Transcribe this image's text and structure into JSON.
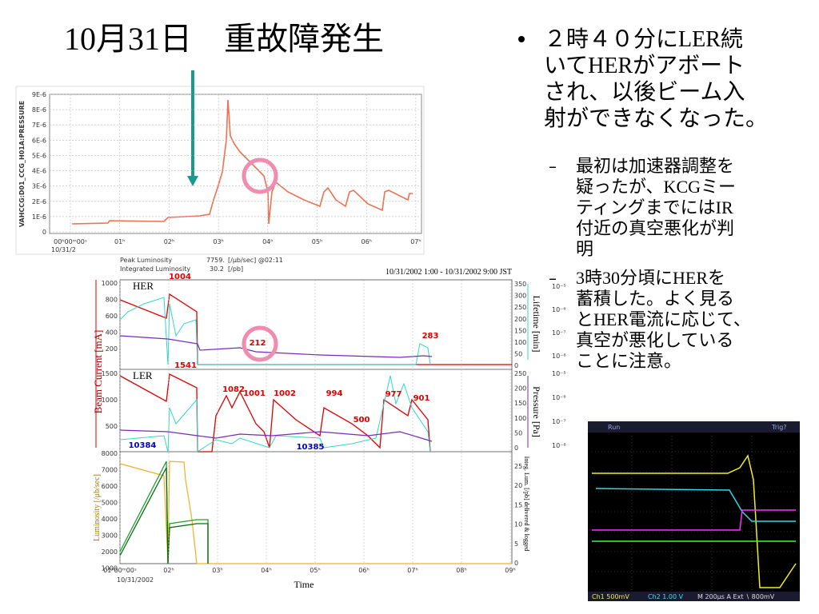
{
  "title": "10月31日　重故障発生",
  "bullet": {
    "lines": [
      "２時４０分にLER続",
      "いてHERがアボート",
      "され、以後ビーム入",
      "射ができなくなった。"
    ]
  },
  "sub_bullets": [
    {
      "lines": [
        "最初は加速器調整を",
        "疑ったが、KCGミー",
        "ティングまでにはIR",
        "付近の真空悪化が判",
        "明"
      ]
    },
    {
      "lines": [
        "3時30分頃にHERを",
        "蓄積した。よく見る",
        "とHER電流に応じて、",
        "真空が悪化している",
        "ことに注意。"
      ]
    }
  ],
  "top_chart": {
    "y_label": "VAHCCG:D01_CCG_H01A:PRESSURE",
    "yticks": [
      "9E-6",
      "8E-6",
      "7E-6",
      "6E-6",
      "5E-6",
      "4E-6",
      "3E-6",
      "2E-6",
      "1E-6",
      "0"
    ],
    "xticks": [
      "00ʰ00ᵐ00ˢ",
      "01ʰ",
      "02ʰ",
      "03ʰ",
      "04ʰ",
      "05ʰ",
      "06ʰ",
      "07ʰ"
    ],
    "date": "10/31/2"
  },
  "bottom_chart": {
    "header": [
      "Peak Luminosity",
      "7759.",
      "[/μb/sec] @02:11",
      "Integrated Luminosity",
      "30.2",
      "[/pb]"
    ],
    "range": "10/31/2002 1:00 - 10/31/2002 9:00 JST",
    "her_label": "HER",
    "ler_label": "LER",
    "current_label": "Beam Current [mA]",
    "lumi_label": "Luminosity [/μb/sec]",
    "lifetime_label": "Lifetime [min]",
    "pressure_label": "Pressure [Pa]",
    "integ_label": "Integ. Lum. [/pb] delivered & logged",
    "x_label": "Time",
    "xticks": [
      "01ʰ00ᵐ00ˢ",
      "02ʰ",
      "03ʰ",
      "04ʰ",
      "05ʰ",
      "06ʰ",
      "07ʰ",
      "08ʰ",
      "09ʰ"
    ],
    "x_date": "10/31/2002",
    "her_yticks": [
      "1000",
      "800",
      "600",
      "400",
      "200"
    ],
    "her_rticks": [
      "350",
      "300",
      "250",
      "200",
      "150",
      "100",
      "50",
      "0"
    ],
    "ler_yticks": [
      "1500",
      "1000",
      "500"
    ],
    "ler_rticks": [
      "250",
      "200",
      "150",
      "100",
      "50",
      "0"
    ],
    "log_ticks": [
      "10⁻⁵",
      "10⁻⁶",
      "10⁻⁷",
      "10⁻⁸"
    ],
    "lumi_yticks": [
      "8000",
      "7000",
      "6000",
      "5000",
      "4000",
      "3000",
      "2000",
      "1000"
    ],
    "lumi_rticks": [
      "25",
      "20",
      "15",
      "10",
      "5",
      "0"
    ],
    "annotations": [
      "1004",
      "1541",
      "212",
      "283",
      "1082",
      "1001",
      "1002",
      "994",
      "500",
      "977",
      "901",
      "10384",
      "10385"
    ]
  },
  "scope": {
    "run": "Run",
    "trig": "Trig?",
    "ch1": "Ch1  500mV",
    "ch2": "Ch2  1.00 V",
    "time": "M 200μs  A  Ext ∖  800mV"
  }
}
